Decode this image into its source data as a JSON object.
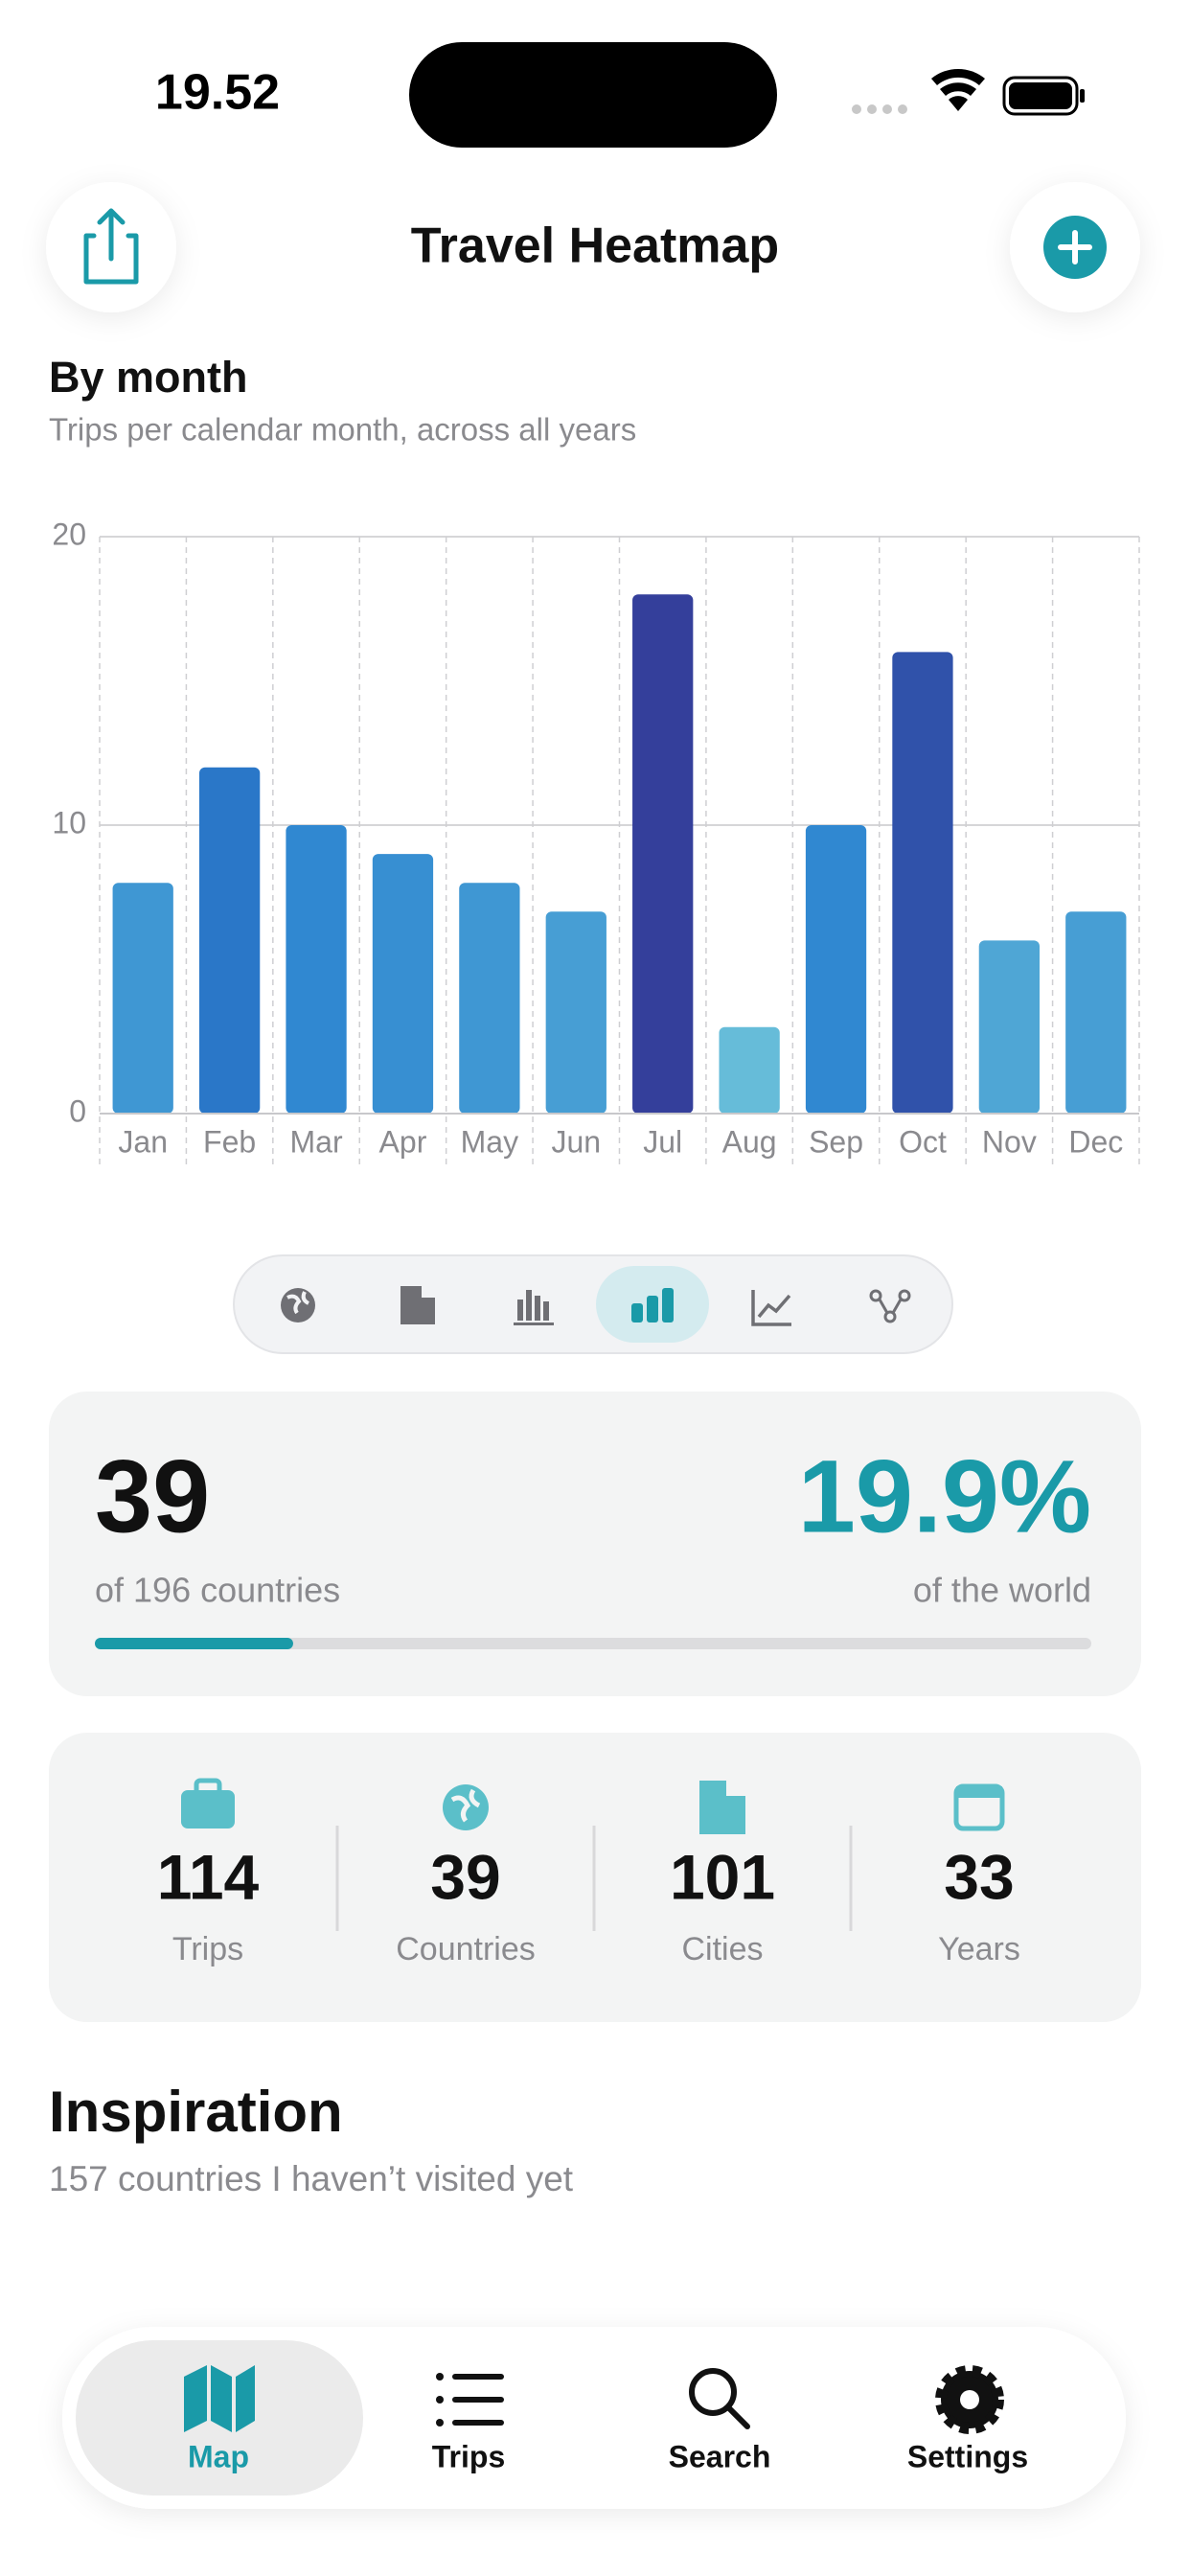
{
  "status": {
    "time": "19.52"
  },
  "header": {
    "title": "Travel Heatmap"
  },
  "chart_data": {
    "type": "bar",
    "title": "By month",
    "subtitle": "Trips per calendar month, across all years",
    "categories": [
      "Jan",
      "Feb",
      "Mar",
      "Apr",
      "May",
      "Jun",
      "Jul",
      "Aug",
      "Sep",
      "Oct",
      "Nov",
      "Dec"
    ],
    "values": [
      8,
      12,
      10,
      9,
      8,
      7,
      18,
      3,
      10,
      16,
      6,
      7
    ],
    "ylim": [
      0,
      20
    ],
    "yticks": [
      0,
      10,
      20
    ],
    "grid": true
  },
  "summary": {
    "count": "39",
    "count_caption": "of 196 countries",
    "world_share": {
      "value": 19.9,
      "label": "19.9%"
    },
    "share_caption": "of the world"
  },
  "stats": [
    {
      "value": "114",
      "label": "Trips"
    },
    {
      "value": "39",
      "label": "Countries"
    },
    {
      "value": "101",
      "label": "Cities"
    },
    {
      "value": "33",
      "label": "Years"
    }
  ],
  "inspiration": {
    "title": "Inspiration",
    "subtitle": "157 countries I haven’t visited yet"
  },
  "tabs": [
    "Map",
    "Trips",
    "Search",
    "Settings"
  ]
}
